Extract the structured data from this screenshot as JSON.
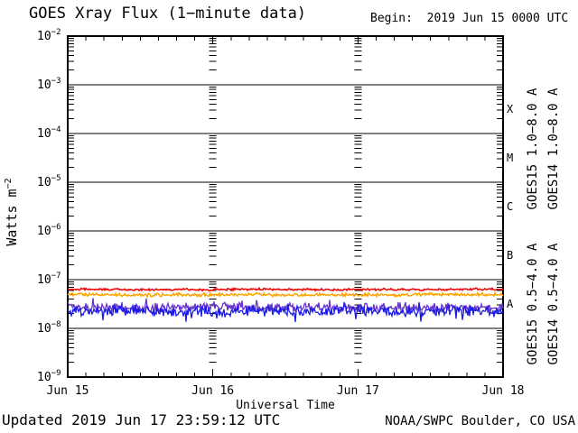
{
  "header": {
    "title": "GOES Xray Flux (1−minute data)",
    "begin_label": "Begin:  2019 Jun 15 0000 UTC"
  },
  "footer": {
    "updated": "Updated 2019 Jun 17 23:59:12 UTC",
    "credit": "NOAA/SWPC Boulder, CO USA"
  },
  "chart_data": {
    "type": "line",
    "title": "GOES Xray Flux (1−minute data)",
    "begin_label": "Begin:  2019 Jun 15 0000 UTC",
    "xlabel": "Universal Time",
    "ylabel_base": "Watts m",
    "ylabel_exponent": "−2",
    "y_scale": "log",
    "ylim": [
      1e-09,
      0.01
    ],
    "y_axis": {
      "exponent_ticks": [
        -2,
        -3,
        -4,
        -5,
        -6,
        -7,
        -8,
        -9
      ]
    },
    "x_axis": {
      "start_utc": "2019 Jun 15 0000 UTC",
      "span_days": 3,
      "tick_labels": [
        "Jun 15",
        "Jun 16",
        "Jun 17",
        "Jun 18"
      ],
      "minor_tick_hours": 3,
      "day_gridlines": [
        "Jun 16",
        "Jun 17"
      ]
    },
    "flux_classes": [
      {
        "label": "X",
        "upper_exponent": -3
      },
      {
        "label": "M",
        "upper_exponent": -4
      },
      {
        "label": "C",
        "upper_exponent": -5
      },
      {
        "label": "B",
        "upper_exponent": -6
      },
      {
        "label": "A",
        "upper_exponent": -7
      }
    ],
    "grid": {
      "horizontal_decade_lines": true,
      "vertical_day_tick_columns": true
    },
    "legend_position": "right",
    "sample_times_hours": [
      0,
      6,
      12,
      18,
      24,
      30,
      36,
      42,
      48,
      54,
      60,
      66,
      72
    ],
    "series": [
      {
        "name": "GOES15 1.0−8.0 A",
        "satellite": "GOES15",
        "channel": "long",
        "color": "#EE0000",
        "approx_flux_wm2": 6.3e-08,
        "sampled_flux_wm2": [
          6.4e-08,
          6.3e-08,
          6.2e-08,
          6.3e-08,
          6.2e-08,
          6.4e-08,
          6.3e-08,
          6.2e-08,
          6.3e-08,
          6.3e-08,
          6.2e-08,
          6.4e-08,
          6.3e-08
        ],
        "noise_log10": 0.026,
        "draw_order": 4
      },
      {
        "name": "GOES14 1.0−8.0 A",
        "satellite": "GOES14",
        "channel": "long",
        "color": "#FFA500",
        "approx_flux_wm2": 4.9e-08,
        "sampled_flux_wm2": [
          5e-08,
          4.9e-08,
          4.8e-08,
          4.9e-08,
          4.9e-08,
          5e-08,
          4.8e-08,
          4.9e-08,
          4.9e-08,
          4.8e-08,
          5e-08,
          4.9e-08,
          4.9e-08
        ],
        "noise_log10": 0.04,
        "draw_order": 3
      },
      {
        "name": "GOES15 0.5−4.0 A",
        "satellite": "GOES15",
        "channel": "short",
        "color": "#1A1AE8",
        "approx_flux_wm2": 2.2e-08,
        "sampled_flux_wm2": [
          2.3e-08,
          2.2e-08,
          2.3e-08,
          2.2e-08,
          2.1e-08,
          2.3e-08,
          2.2e-08,
          2.2e-08,
          2.3e-08,
          2.1e-08,
          2.2e-08,
          2.3e-08,
          2.2e-08
        ],
        "noise_log10": 0.13,
        "draw_order": 2
      },
      {
        "name": "GOES14 0.5−4.0 A",
        "satellite": "GOES14",
        "channel": "short",
        "color": "#6633CC",
        "approx_flux_wm2": 2.7e-08,
        "sampled_flux_wm2": [
          2.8e-08,
          2.7e-08,
          2.6e-08,
          2.7e-08,
          2.8e-08,
          2.6e-08,
          2.7e-08,
          2.7e-08,
          2.6e-08,
          2.8e-08,
          2.7e-08,
          2.6e-08,
          2.7e-08
        ],
        "noise_log10": 0.115,
        "draw_order": 1
      }
    ]
  }
}
